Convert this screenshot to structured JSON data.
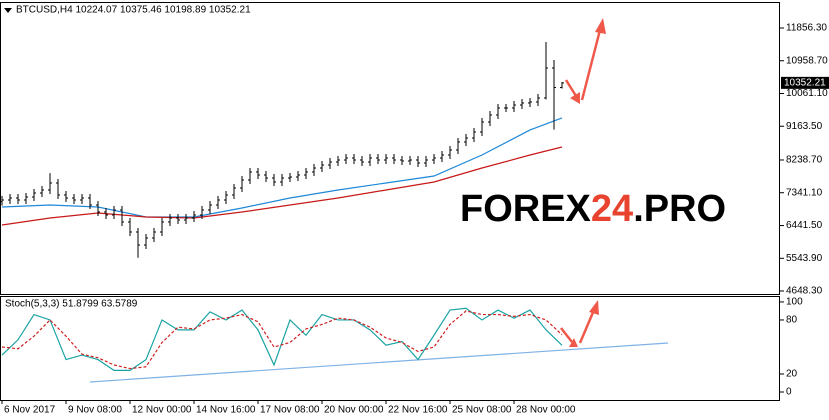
{
  "chart_data": [
    {
      "type": "ohlc",
      "title": "BTCUSD,H4  10224.07 10375.46 10198.89 10352.21",
      "open": [
        7100,
        7142,
        7197,
        7142,
        7224,
        7334,
        7416,
        7608,
        7279,
        7197,
        7142,
        7197,
        7005,
        6813,
        6731,
        6868,
        6539,
        6265,
        5908,
        6100,
        6265,
        6539,
        6648,
        6594,
        6648,
        6731,
        6868,
        7005,
        7142,
        7279,
        7471,
        7690,
        7910,
        7827,
        7745,
        7635,
        7745,
        7772,
        7827,
        7910,
        8019,
        8101,
        8183,
        8238,
        8293,
        8238,
        8183,
        8293,
        8238,
        8293,
        8238,
        8211,
        8238,
        8156,
        8238,
        8293,
        8375,
        8512,
        8732,
        8841,
        9006,
        9280,
        9472,
        9664,
        9664,
        9746,
        9801,
        9829,
        9938,
        10760,
        10224.07
      ],
      "high": [
        7252,
        7307,
        7307,
        7334,
        7444,
        7526,
        7880,
        7718,
        7389,
        7307,
        7307,
        7307,
        7115,
        6923,
        6978,
        6978,
        6649,
        6375,
        6210,
        6375,
        6649,
        6758,
        6758,
        6758,
        6841,
        6978,
        7115,
        7252,
        7389,
        7581,
        7800,
        8020,
        8020,
        7937,
        7855,
        7855,
        7882,
        7937,
        8020,
        8129,
        8211,
        8293,
        8348,
        8403,
        8403,
        8348,
        8403,
        8403,
        8403,
        8403,
        8348,
        8348,
        8348,
        8348,
        8403,
        8485,
        8622,
        8842,
        8951,
        9116,
        9390,
        9582,
        9774,
        9774,
        9856,
        9911,
        9939,
        10048,
        11473,
        10979,
        10375.46
      ],
      "low": [
        6990,
        7032,
        7032,
        7032,
        7114,
        7224,
        7306,
        7169,
        7087,
        7032,
        7032,
        6895,
        6703,
        6621,
        6621,
        6429,
        6155,
        5560,
        5798,
        5990,
        6155,
        6429,
        6484,
        6484,
        6538,
        6621,
        6758,
        6895,
        7032,
        7169,
        7361,
        7580,
        7717,
        7635,
        7525,
        7525,
        7635,
        7662,
        7717,
        7800,
        7909,
        7991,
        8073,
        8128,
        8128,
        8073,
        8073,
        8128,
        8128,
        8128,
        8101,
        8101,
        8046,
        8046,
        8128,
        8183,
        8265,
        8402,
        8622,
        8731,
        8896,
        9170,
        9362,
        9554,
        9554,
        9636,
        9691,
        9719,
        9900,
        9070,
        10198.89
      ],
      "close": [
        7142,
        7197,
        7142,
        7224,
        7334,
        7416,
        7608,
        7279,
        7197,
        7142,
        7197,
        7005,
        6813,
        6731,
        6868,
        6539,
        6265,
        5908,
        6100,
        6265,
        6539,
        6648,
        6594,
        6648,
        6731,
        6868,
        7005,
        7142,
        7279,
        7471,
        7690,
        7910,
        7827,
        7745,
        7635,
        7745,
        7772,
        7827,
        7910,
        8019,
        8101,
        8183,
        8238,
        8293,
        8238,
        8183,
        8293,
        8238,
        8293,
        8238,
        8211,
        8238,
        8156,
        8238,
        8293,
        8375,
        8512,
        8732,
        8841,
        9006,
        9280,
        9472,
        9664,
        9664,
        9746,
        9801,
        9829,
        9938,
        10760,
        10224.07,
        10352.21
      ],
      "color": "#000000",
      "series": [
        {
          "color": "#1e88d8",
          "x": [
            0,
            6,
            12,
            18,
            24,
            30,
            36,
            42,
            48,
            54,
            60,
            66,
            70
          ],
          "values": [
            6950,
            7005,
            6950,
            6676,
            6676,
            6923,
            7197,
            7416,
            7608,
            7800,
            8375,
            9061,
            9390
          ]
        },
        {
          "color": "#c81818",
          "x": [
            0,
            6,
            12,
            18,
            24,
            30,
            36,
            42,
            48,
            54,
            60,
            66,
            70
          ],
          "values": [
            6457,
            6648,
            6786,
            6676,
            6648,
            6813,
            7005,
            7197,
            7416,
            7635,
            8019,
            8375,
            8594
          ]
        }
      ],
      "last_price": {
        "value": 10352.21,
        "label": "10352.21"
      },
      "ylim": [
        4593,
        12459
      ],
      "yticks": [
        {
          "value": 11856.3,
          "label": "11856.30"
        },
        {
          "value": 10958.7,
          "label": "10958.70"
        },
        {
          "value": 10061.1,
          "label": "10061.10"
        },
        {
          "value": 9163.5,
          "label": "9163.50"
        },
        {
          "value": 8238.7,
          "label": "8238.70"
        },
        {
          "value": 7341.1,
          "label": "7341.10"
        },
        {
          "value": 6441.5,
          "label": "6441.50"
        },
        {
          "value": 5543.9,
          "label": "5543.90"
        },
        {
          "value": 4648.3,
          "label": "4648.30"
        }
      ],
      "watermark": [
        "FOREX",
        "24",
        ".PRO"
      ],
      "grid": false
    },
    {
      "type": "line",
      "title": "Stoch(5,3,3) 51.8799 63.5789",
      "categories": [
        "6 Nov 2017",
        null,
        null,
        null,
        null,
        null,
        null,
        null,
        "9 Nov 08:00",
        null,
        null,
        null,
        null,
        null,
        null,
        null,
        "12 Nov 00:00",
        null,
        null,
        null,
        null,
        null,
        null,
        null,
        "14 Nov 16:00",
        null,
        null,
        null,
        null,
        null,
        null,
        null,
        "17 Nov 08:00",
        null,
        null,
        null,
        null,
        null,
        null,
        null,
        "20 Nov 00:00",
        null,
        null,
        null,
        null,
        null,
        null,
        null,
        "22 Nov 16:00",
        null,
        null,
        null,
        null,
        null,
        null,
        null,
        "25 Nov 08:00",
        null,
        null,
        null,
        null,
        null,
        null,
        null,
        "28 Nov 00:00",
        null,
        null,
        null,
        null,
        null,
        null
      ],
      "series": [
        {
          "color": "#1aa3a3",
          "style": "solid",
          "x": [
            0,
            2,
            4,
            6,
            8,
            10,
            12,
            14,
            16,
            18,
            20,
            22,
            24,
            26,
            28,
            30,
            32,
            34,
            36,
            38,
            40,
            42,
            44,
            46,
            48,
            50,
            52,
            54,
            56,
            58,
            60,
            62,
            64,
            66,
            68,
            70
          ],
          "values": [
            41,
            58,
            86,
            80,
            36,
            41,
            36,
            24,
            24,
            36,
            80,
            69,
            69,
            89,
            80,
            91,
            69,
            30,
            80,
            63,
            86,
            80,
            80,
            69,
            52,
            56,
            36,
            63,
            91,
            93,
            80,
            91,
            82,
            91,
            69,
            51.8799
          ]
        },
        {
          "color": "#d02020",
          "style": "dashed",
          "x": [
            0,
            2,
            4,
            6,
            8,
            10,
            12,
            14,
            16,
            18,
            20,
            22,
            24,
            26,
            28,
            30,
            32,
            34,
            36,
            38,
            40,
            42,
            44,
            46,
            48,
            50,
            52,
            54,
            56,
            58,
            60,
            62,
            64,
            66,
            68,
            70
          ],
          "values": [
            50,
            48,
            62,
            80,
            62,
            42,
            38,
            30,
            26,
            28,
            55,
            72,
            70,
            80,
            82,
            86,
            78,
            50,
            55,
            70,
            75,
            82,
            80,
            72,
            60,
            55,
            45,
            50,
            75,
            90,
            86,
            86,
            84,
            86,
            80,
            63.5789
          ]
        }
      ],
      "ylim": [
        -8.9,
        105.5
      ],
      "yticks": [
        100,
        80,
        20,
        0
      ],
      "grid": false
    }
  ]
}
